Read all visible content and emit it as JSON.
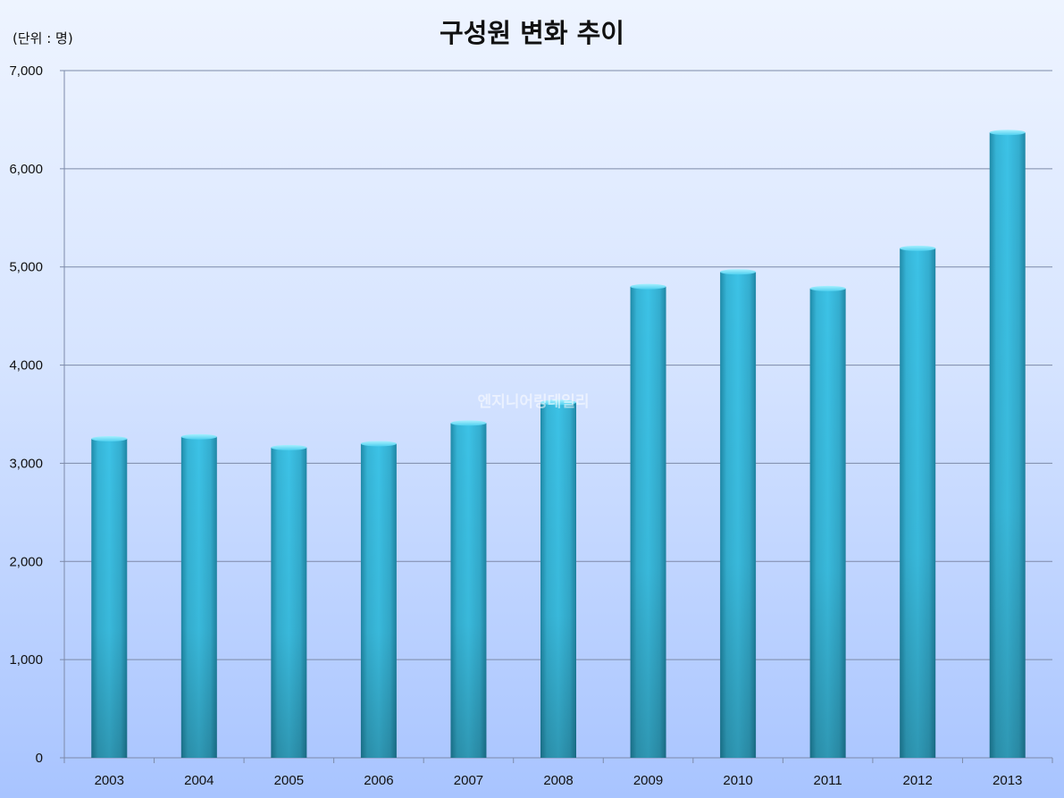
{
  "chart_data": {
    "type": "bar",
    "title": "구성원 변화 추이",
    "unit_label": "(단위 : 명)",
    "categories": [
      "2003",
      "2004",
      "2005",
      "2006",
      "2007",
      "2008",
      "2009",
      "2010",
      "2011",
      "2012",
      "2013"
    ],
    "values": [
      3250,
      3270,
      3160,
      3200,
      3410,
      3620,
      4800,
      4950,
      4780,
      5190,
      6370
    ],
    "ylim": [
      0,
      7000
    ],
    "yticks": [
      0,
      1000,
      2000,
      3000,
      4000,
      5000,
      6000,
      7000
    ],
    "ytick_labels": [
      "0",
      "1,000",
      "2,000",
      "3,000",
      "4,000",
      "5,000",
      "6,000",
      "7,000"
    ],
    "grid": true,
    "bar_color": "#35b8dd",
    "watermark": "엔지니어링데일리"
  }
}
